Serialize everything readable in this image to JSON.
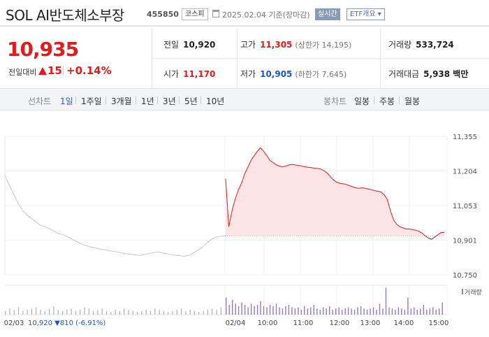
{
  "header": {
    "title": "SOL AI반도체소부장",
    "code": "455850",
    "market": "코스피",
    "date": "2025.02.04 기준(장마감)",
    "realtime_label": "실시간",
    "etf_label": "ETF개요"
  },
  "price": {
    "current": "10,935",
    "change_label": "전일대비",
    "change": "15",
    "change_pct": "+0.14%"
  },
  "quotes": {
    "prev_label": "전일",
    "prev": "10,920",
    "high_label": "고가",
    "high": "11,305",
    "upper_limit": "(상한가 14,195)",
    "volume_label": "거래량",
    "volume": "533,724",
    "open_label": "시가",
    "open": "11,170",
    "low_label": "저가",
    "low": "10,905",
    "lower_limit": "(하한가 7,645)",
    "amount_label": "거래대금",
    "amount": "5,938 백만"
  },
  "periods": {
    "line_label": "선차트",
    "line_items": [
      "1일",
      "1주일",
      "3개월",
      "1년",
      "3년",
      "5년",
      "10년"
    ],
    "candle_label": "봉차트",
    "candle_items": [
      "일봉",
      "주봉",
      "월봉"
    ]
  },
  "colors": {
    "up": "#e01c1c",
    "down": "#1c57c4",
    "prev_day_line": "#c8c8c8",
    "fill": "#fde4e6",
    "volume_prev": "#b0b0b0",
    "volume_today": "#8f7cc9"
  },
  "chart_data": {
    "type": "line",
    "y_ticks": [
      "11,355",
      "11,204",
      "11,053",
      "10,901",
      "10,750"
    ],
    "ylim": [
      10750,
      11355
    ],
    "x_labels": [
      "02/03",
      "02/04",
      "10:00",
      "11:00",
      "12:00",
      "13:00",
      "14:00",
      "15:00"
    ],
    "base_price": 10920,
    "volume_legend": "거래량",
    "prev_day_summary": {
      "date": "02/03",
      "close": "10,920",
      "change": "▼810",
      "change_pct": "(-6.91%)"
    },
    "series": [
      {
        "name": "02/03",
        "values": [
          11185,
          11140,
          11100,
          11060,
          11030,
          11010,
          10995,
          10980,
          10965,
          10960,
          10950,
          10940,
          10930,
          10925,
          10915,
          10905,
          10895,
          10885,
          10878,
          10872,
          10868,
          10863,
          10860,
          10856,
          10853,
          10850,
          10846,
          10842,
          10840,
          10837,
          10835,
          10838,
          10842,
          10846,
          10850,
          10846,
          10842,
          10838,
          10835,
          10833,
          10831,
          10835,
          10845,
          10858,
          10870,
          10890,
          10905,
          10915,
          10918,
          10920
        ]
      },
      {
        "name": "02/04",
        "values": [
          11170,
          10960,
          11030,
          11080,
          11120,
          11150,
          11190,
          11220,
          11250,
          11270,
          11290,
          11305,
          11290,
          11270,
          11250,
          11240,
          11230,
          11225,
          11222,
          11225,
          11230,
          11232,
          11230,
          11228,
          11225,
          11222,
          11220,
          11218,
          11216,
          11215,
          11212,
          11205,
          11195,
          11180,
          11165,
          11155,
          11150,
          11148,
          11145,
          11140,
          11135,
          11130,
          11128,
          11130,
          11128,
          11125,
          11122,
          11118,
          11115,
          11112,
          11100,
          11080,
          11030,
          10990,
          10970,
          10960,
          10955,
          10950,
          10950,
          10948,
          10945,
          10940,
          10932,
          10920,
          10910,
          10905,
          10915,
          10925,
          10935,
          10935
        ]
      }
    ],
    "volume": {
      "prev": [
        3,
        5,
        4,
        6,
        3,
        4,
        5,
        6,
        4,
        3,
        5,
        7,
        4,
        3,
        4,
        5,
        3,
        4,
        6,
        5,
        3,
        4,
        5,
        3,
        2,
        4,
        3,
        5,
        4,
        3,
        2,
        3,
        4,
        3,
        5,
        4,
        3,
        2,
        3,
        4,
        5,
        3,
        4,
        3,
        2,
        3,
        4,
        5,
        4,
        6
      ],
      "today": [
        14,
        8,
        12,
        9,
        7,
        10,
        8,
        6,
        9,
        7,
        8,
        11,
        7,
        6,
        8,
        7,
        9,
        6,
        5,
        7,
        8,
        6,
        5,
        6,
        4,
        7,
        5,
        6,
        8,
        5,
        4,
        6,
        5,
        7,
        4,
        5,
        6,
        4,
        5,
        6,
        5,
        4,
        6,
        7,
        5,
        4,
        5,
        6,
        4,
        9,
        5,
        22,
        6,
        5,
        4,
        6,
        5,
        4,
        14,
        5,
        6,
        4,
        5,
        8,
        4,
        5,
        6,
        4,
        5,
        10
      ]
    }
  }
}
